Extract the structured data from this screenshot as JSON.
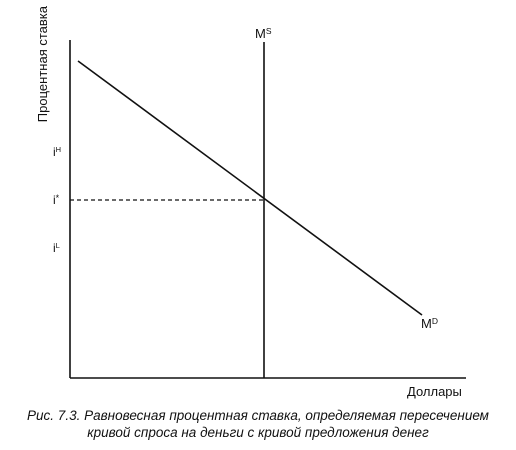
{
  "diagram": {
    "y_axis_label": "Процентная ставка",
    "x_axis_label": "Доллары",
    "interest_rates": {
      "high": {
        "base": "i",
        "sup": "H"
      },
      "equilibrium": {
        "base": "i",
        "sup": "*"
      },
      "low": {
        "base": "i",
        "sup": "L"
      }
    },
    "supply_curve": {
      "base": "M",
      "sup": "S"
    },
    "demand_curve": {
      "base": "M",
      "sup": "D"
    }
  },
  "caption": {
    "line1": "Рис. 7.3. Равновесная процентная ставка, определяемая пересечением",
    "line2": "кривой спроса на деньги с кривой предложения денег"
  }
}
